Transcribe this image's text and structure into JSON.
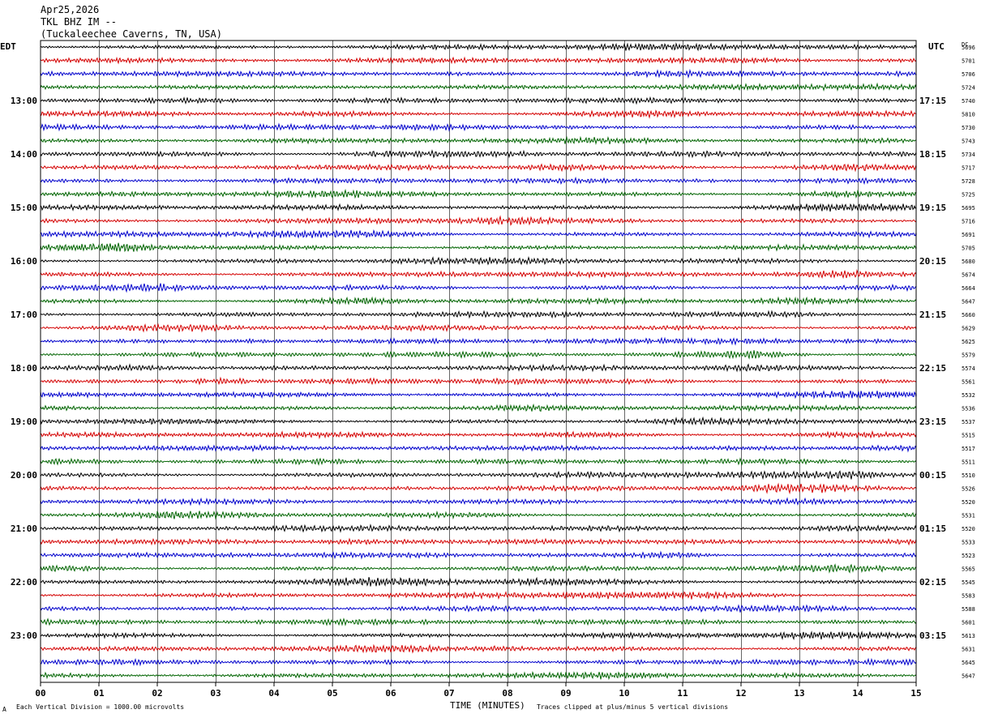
{
  "header": {
    "date": "Apr25,2026",
    "station": "TKL BHZ IM --",
    "location": "(Tuckaleechee Caverns, TN, USA)"
  },
  "left_zone_label": "EDT",
  "right_zone_label": "UTC",
  "dc_header": "DC",
  "footer": {
    "scale_mark": "A",
    "scale_note": "Each Vertical Division = 1000.00 microvolts",
    "clip_note": "Traces clipped at plus/minus 5 vertical divisions"
  },
  "chart_data": {
    "type": "line",
    "xlabel": "TIME (MINUTES)",
    "xlim": [
      0,
      15
    ],
    "x_ticks": [
      "00",
      "01",
      "02",
      "03",
      "04",
      "05",
      "06",
      "07",
      "08",
      "09",
      "10",
      "11",
      "12",
      "13",
      "14",
      "15"
    ],
    "trace_colors": [
      "#000000",
      "#d40000",
      "#0000cc",
      "#006400"
    ],
    "left_time_labels": [
      "13:00",
      "14:00",
      "15:00",
      "16:00",
      "17:00",
      "18:00",
      "19:00",
      "20:00",
      "21:00",
      "22:00",
      "23:00"
    ],
    "right_time_labels": [
      "17:15",
      "18:15",
      "19:15",
      "20:15",
      "21:15",
      "22:15",
      "23:15",
      "00:15",
      "01:15",
      "02:15",
      "03:15"
    ],
    "dc_offsets": [
      "5696",
      "5701",
      "5706",
      "5724",
      "5740",
      "5810",
      "5730",
      "5743",
      "5734",
      "5717",
      "5728",
      "5725",
      "5695",
      "5716",
      "5691",
      "5705",
      "5680",
      "5674",
      "5664",
      "5647",
      "5660",
      "5629",
      "5625",
      "5579",
      "5574",
      "5561",
      "5532",
      "5536",
      "5537",
      "5515",
      "5517",
      "5511",
      "5510",
      "5526",
      "5520",
      "5531",
      "5520",
      "5533",
      "5523",
      "5565",
      "5545",
      "5583",
      "5588",
      "5601",
      "5613",
      "5631",
      "5645",
      "5647"
    ]
  }
}
